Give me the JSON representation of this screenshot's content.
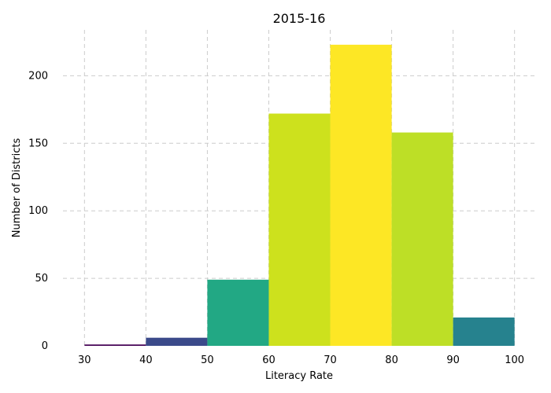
{
  "chart_data": {
    "type": "bar",
    "subtype": "histogram",
    "title": "2015-16",
    "xlabel": "Literacy Rate",
    "ylabel": "Number of Districts",
    "bins": [
      {
        "start": 30,
        "end": 40,
        "value": 1,
        "color": "#440154"
      },
      {
        "start": 40,
        "end": 50,
        "value": 6,
        "color": "#3b4a8a"
      },
      {
        "start": 50,
        "end": 60,
        "value": 49,
        "color": "#22a884"
      },
      {
        "start": 60,
        "end": 70,
        "value": 172,
        "color": "#cde11d"
      },
      {
        "start": 70,
        "end": 80,
        "value": 223,
        "color": "#fde725"
      },
      {
        "start": 80,
        "end": 90,
        "value": 158,
        "color": "#bddf26"
      },
      {
        "start": 90,
        "end": 100,
        "value": 21,
        "color": "#26828e"
      }
    ],
    "xlim": [
      26.5,
      103.5
    ],
    "ylim": [
      0,
      234
    ],
    "xticks": [
      "30",
      "40",
      "50",
      "60",
      "70",
      "80",
      "90",
      "100"
    ],
    "yticks": [
      "0",
      "50",
      "100",
      "150",
      "200"
    ],
    "grid": true,
    "legend": "none"
  }
}
